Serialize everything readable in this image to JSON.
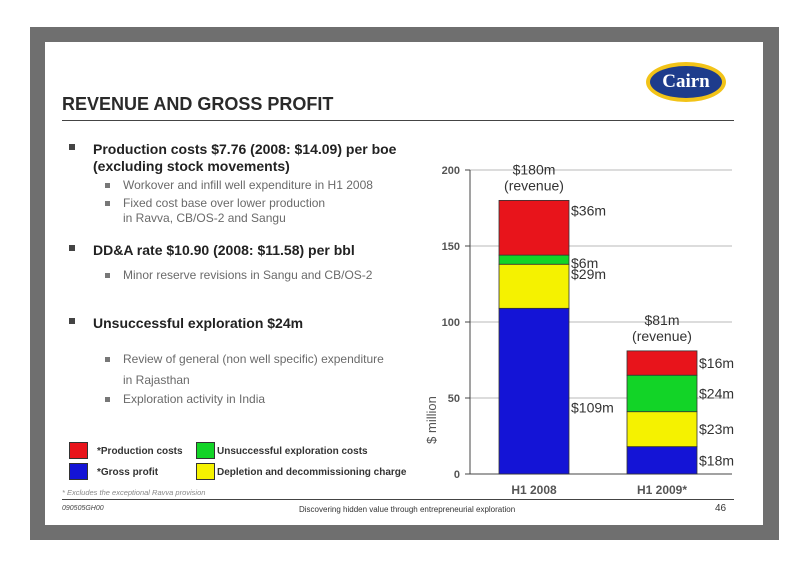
{
  "logo": {
    "text": "Cairn"
  },
  "title": "REVENUE AND GROSS PROFIT",
  "bullets": [
    {
      "text": "Production costs $7.76 (2008: $14.09) per boe",
      "text2": "(excluding stock movements)"
    },
    {
      "text": "Workover and infill well expenditure in H1 2008"
    },
    {
      "text": "Fixed cost base over lower production",
      "text2": "in Ravva, CB/OS-2 and Sangu"
    },
    {
      "text": "DD&A rate $10.90 (2008: $11.58) per bbl"
    },
    {
      "text": "Minor reserve revisions in Sangu and CB/OS-2"
    },
    {
      "text": "Unsuccessful exploration $24m"
    },
    {
      "text": "Review of general (non well specific) expenditure",
      "text2": "in Rajasthan"
    },
    {
      "text": "Exploration activity in India"
    }
  ],
  "legend": [
    {
      "label": "*Production costs",
      "color": "#e8141b"
    },
    {
      "label": "Unsuccessful exploration costs",
      "color": "#12d427"
    },
    {
      "label": "*Gross profit",
      "color": "#1414d6"
    },
    {
      "label": "Depletion and decommissioning charge",
      "color": "#f5f200"
    }
  ],
  "footnote": "* Excludes the exceptional Ravva provision",
  "footer": {
    "id": "090505GH00",
    "tagline": "Discovering hidden value through entrepreneurial exploration",
    "page": "46"
  },
  "chart_data": {
    "type": "bar",
    "stacked": true,
    "categories": [
      "H1 2008",
      "H1 2009*"
    ],
    "ylabel": "$ million",
    "ylim": [
      0,
      200
    ],
    "yticks": [
      0,
      50,
      100,
      150,
      200
    ],
    "grid": true,
    "series": [
      {
        "name": "*Gross profit",
        "color": "#1414d6",
        "values": [
          109,
          18
        ],
        "labels": [
          "$109m",
          "$18m"
        ]
      },
      {
        "name": "Depletion and decommissioning charge",
        "color": "#f5f200",
        "values": [
          29,
          23
        ],
        "labels": [
          "$29m",
          "$23m"
        ]
      },
      {
        "name": "Unsuccessful exploration costs",
        "color": "#12d427",
        "values": [
          6,
          24
        ],
        "labels": [
          "$6m",
          "$24m"
        ]
      },
      {
        "name": "*Production costs",
        "color": "#e8141b",
        "values": [
          36,
          16
        ],
        "labels": [
          "$36m",
          "$16m"
        ]
      }
    ],
    "totals": [
      {
        "value": "$180m",
        "sub": "(revenue)"
      },
      {
        "value": "$81m",
        "sub": "(revenue)"
      }
    ]
  }
}
